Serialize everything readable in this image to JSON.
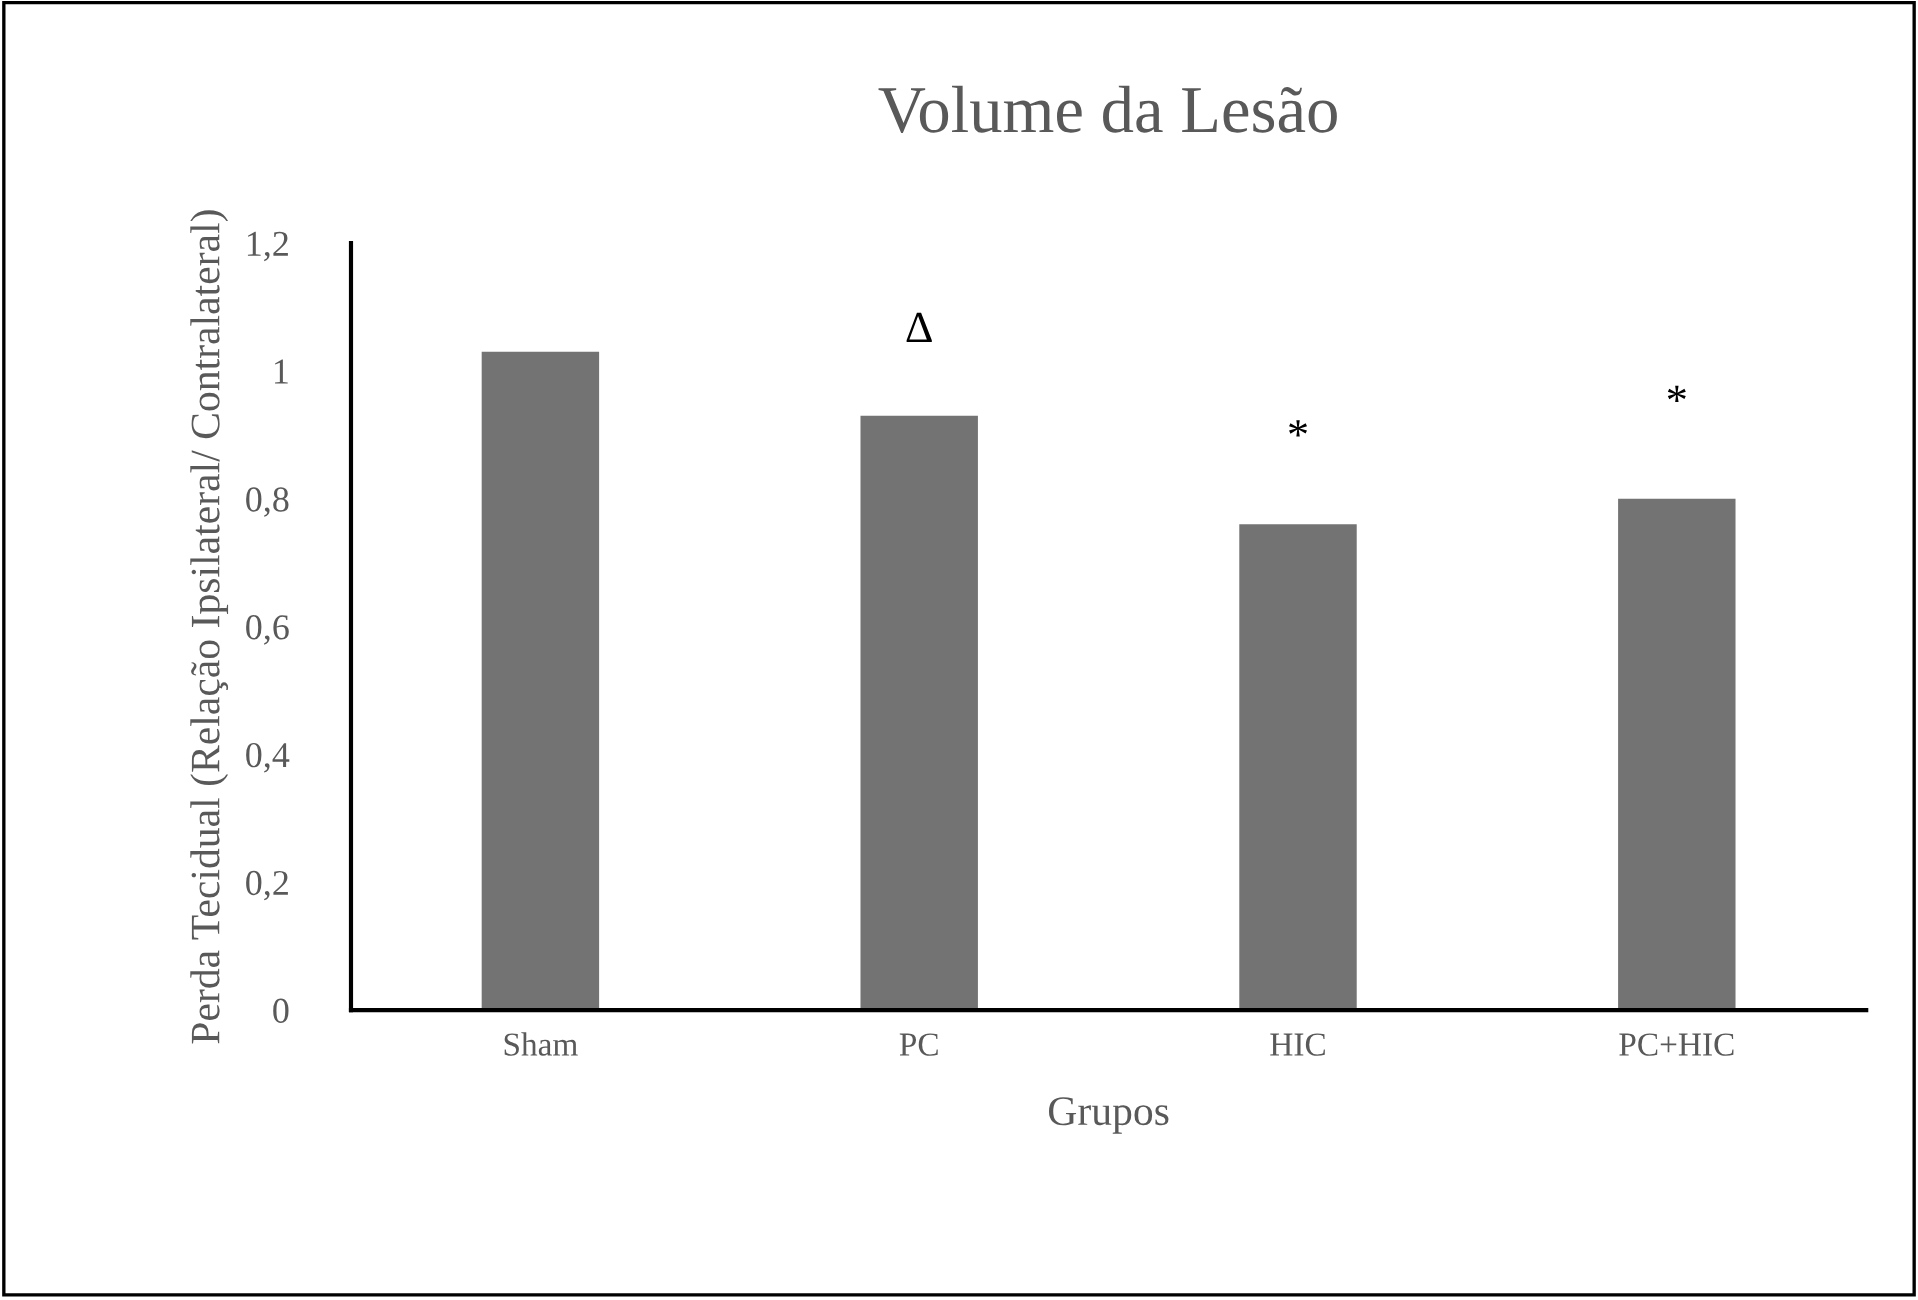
{
  "chart_data": {
    "type": "bar",
    "title": "Volume da Lesão",
    "xlabel": "Grupos",
    "ylabel": "Perda Tecidual (Relação Ipsilateral/ Contralateral)",
    "categories": [
      "Sham",
      "PC",
      "HIC",
      "PC+HIC"
    ],
    "values": [
      1.03,
      0.93,
      0.76,
      0.8
    ],
    "color": "#737373",
    "ylim": [
      0,
      1.2
    ],
    "yticks": [
      {
        "value": 0,
        "label": "0"
      },
      {
        "value": 0.2,
        "label": "0,2"
      },
      {
        "value": 0.4,
        "label": "0,4"
      },
      {
        "value": 0.6,
        "label": "0,6"
      },
      {
        "value": 0.8,
        "label": "0,8"
      },
      {
        "value": 1,
        "label": "1"
      },
      {
        "value": 1.2,
        "label": "1,2"
      }
    ],
    "grid": false,
    "legend": false,
    "annotations": [
      "Δ",
      "*",
      "*"
    ]
  }
}
